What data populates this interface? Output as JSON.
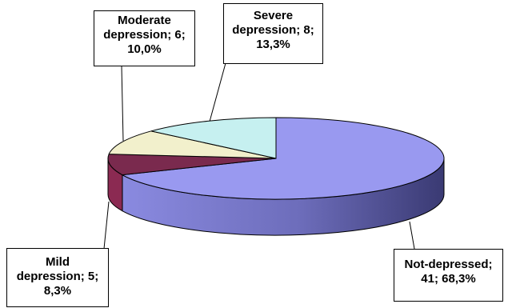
{
  "chart_data": {
    "type": "pie",
    "style": "3d-exploded-none",
    "title": "",
    "slices": [
      {
        "name": "Not-depressed",
        "count": 41,
        "percent": "68,3%",
        "value": 68.3,
        "color": "#9999f0",
        "side_color": "#4d4d99"
      },
      {
        "name": "Mild depression",
        "count": 5,
        "percent": "8,3%",
        "value": 8.3,
        "color": "#7a2a4e",
        "side_color": "#8b2a52"
      },
      {
        "name": "Moderate depression",
        "count": 6,
        "percent": "10,0%",
        "value": 10.0,
        "color": "#f2f0cc",
        "side_color": "#c8c6a4"
      },
      {
        "name": "Severe depression",
        "count": 8,
        "percent": "13,3%",
        "value": 13.3,
        "color": "#c6f0f0",
        "side_color": "#9cc8c8"
      }
    ]
  },
  "labels": {
    "moderate": {
      "line1": "Moderate",
      "line2": "depression; 6;",
      "line3": "10,0%"
    },
    "severe": {
      "line1": "Severe",
      "line2": "depression; 8;",
      "line3": "13,3%"
    },
    "mild": {
      "line1": "Mild",
      "line2": "depression; 5;",
      "line3": "8,3%"
    },
    "notdep": {
      "line1": "Not-depressed;",
      "line2": "41; 68,3%"
    }
  }
}
